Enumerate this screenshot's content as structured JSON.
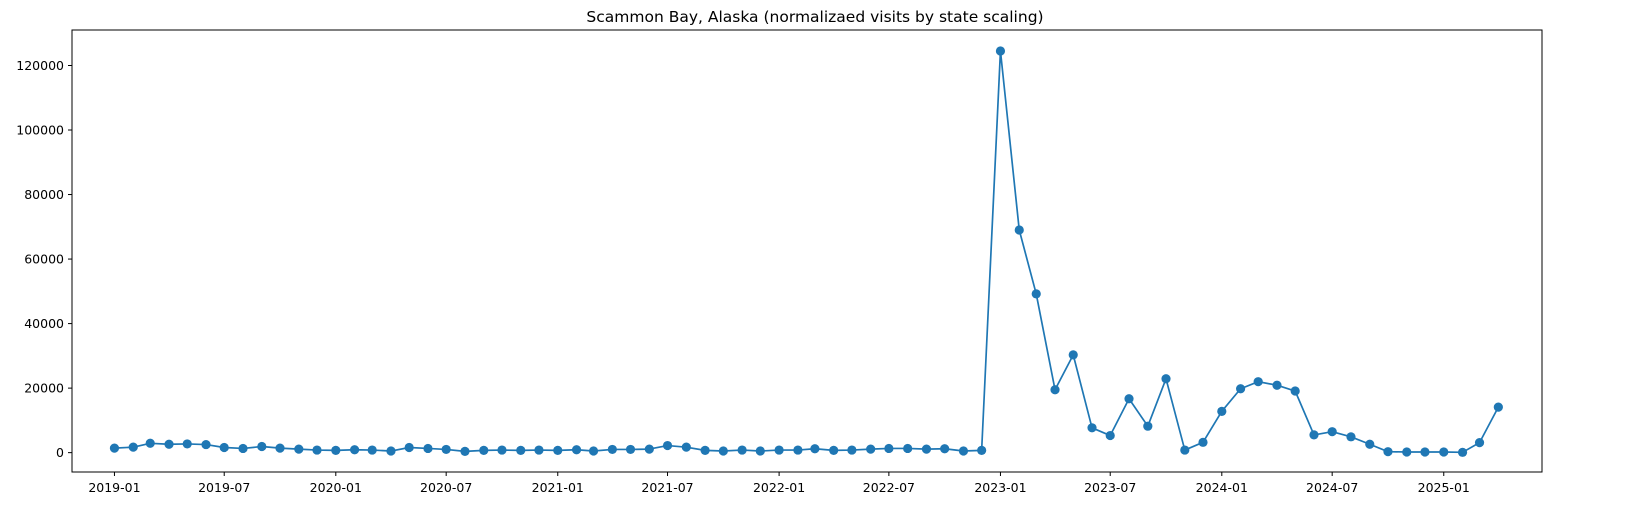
{
  "chart_data": {
    "type": "line",
    "title": "Scammon Bay, Alaska (normalizaed visits by state scaling)",
    "xlabel": "",
    "ylabel": "",
    "grid": false,
    "xlim": [
      "2018-10-23",
      "2025-06-12"
    ],
    "ylim": [
      -6000,
      131000
    ],
    "y_ticks": [
      0,
      20000,
      40000,
      60000,
      80000,
      100000,
      120000
    ],
    "x_ticks": [
      "2019-01",
      "2019-07",
      "2020-01",
      "2020-07",
      "2021-01",
      "2021-07",
      "2022-01",
      "2022-07",
      "2023-01",
      "2023-07",
      "2024-01",
      "2024-07",
      "2025-01"
    ],
    "colors": {
      "series": "#1f77b4"
    },
    "marker": "circle",
    "series": [
      {
        "x": [
          "2019-01",
          "2019-02",
          "2019-03",
          "2019-04",
          "2019-05",
          "2019-06",
          "2019-07",
          "2019-08",
          "2019-09",
          "2019-10",
          "2019-11",
          "2019-12",
          "2020-01",
          "2020-02",
          "2020-03",
          "2020-04",
          "2020-05",
          "2020-06",
          "2020-07",
          "2020-08",
          "2020-09",
          "2020-10",
          "2020-11",
          "2020-12",
          "2021-01",
          "2021-02",
          "2021-03",
          "2021-04",
          "2021-05",
          "2021-06",
          "2021-07",
          "2021-08",
          "2021-09",
          "2021-10",
          "2021-11",
          "2021-12",
          "2022-01",
          "2022-02",
          "2022-03",
          "2022-04",
          "2022-05",
          "2022-06",
          "2022-07",
          "2022-08",
          "2022-09",
          "2022-10",
          "2022-11",
          "2022-12",
          "2023-01",
          "2023-02",
          "2023-03",
          "2023-04",
          "2023-05",
          "2023-06",
          "2023-07",
          "2023-08",
          "2023-09",
          "2023-10",
          "2023-11",
          "2023-12",
          "2024-01",
          "2024-02",
          "2024-03",
          "2024-04",
          "2024-05",
          "2024-06",
          "2024-07",
          "2024-08",
          "2024-09",
          "2024-10",
          "2024-11",
          "2024-12",
          "2025-01",
          "2025-02",
          "2025-03",
          "2025-04"
        ],
        "values": [
          1400,
          1700,
          2900,
          2600,
          2700,
          2500,
          1600,
          1300,
          1900,
          1400,
          1100,
          800,
          700,
          900,
          800,
          500,
          1600,
          1300,
          1000,
          400,
          700,
          800,
          700,
          800,
          700,
          900,
          500,
          1000,
          1000,
          1100,
          2200,
          1700,
          700,
          500,
          800,
          500,
          800,
          800,
          1200,
          700,
          800,
          1100,
          1300,
          1300,
          1100,
          1200,
          500,
          700,
          124500,
          69000,
          49200,
          19500,
          30300,
          7700,
          5300,
          16700,
          8200,
          22900,
          800,
          3200,
          12800,
          19800,
          22000,
          20900,
          19100,
          5500,
          6500,
          4900,
          2600,
          300,
          200,
          200,
          200,
          100,
          3100,
          14100
        ]
      }
    ]
  }
}
